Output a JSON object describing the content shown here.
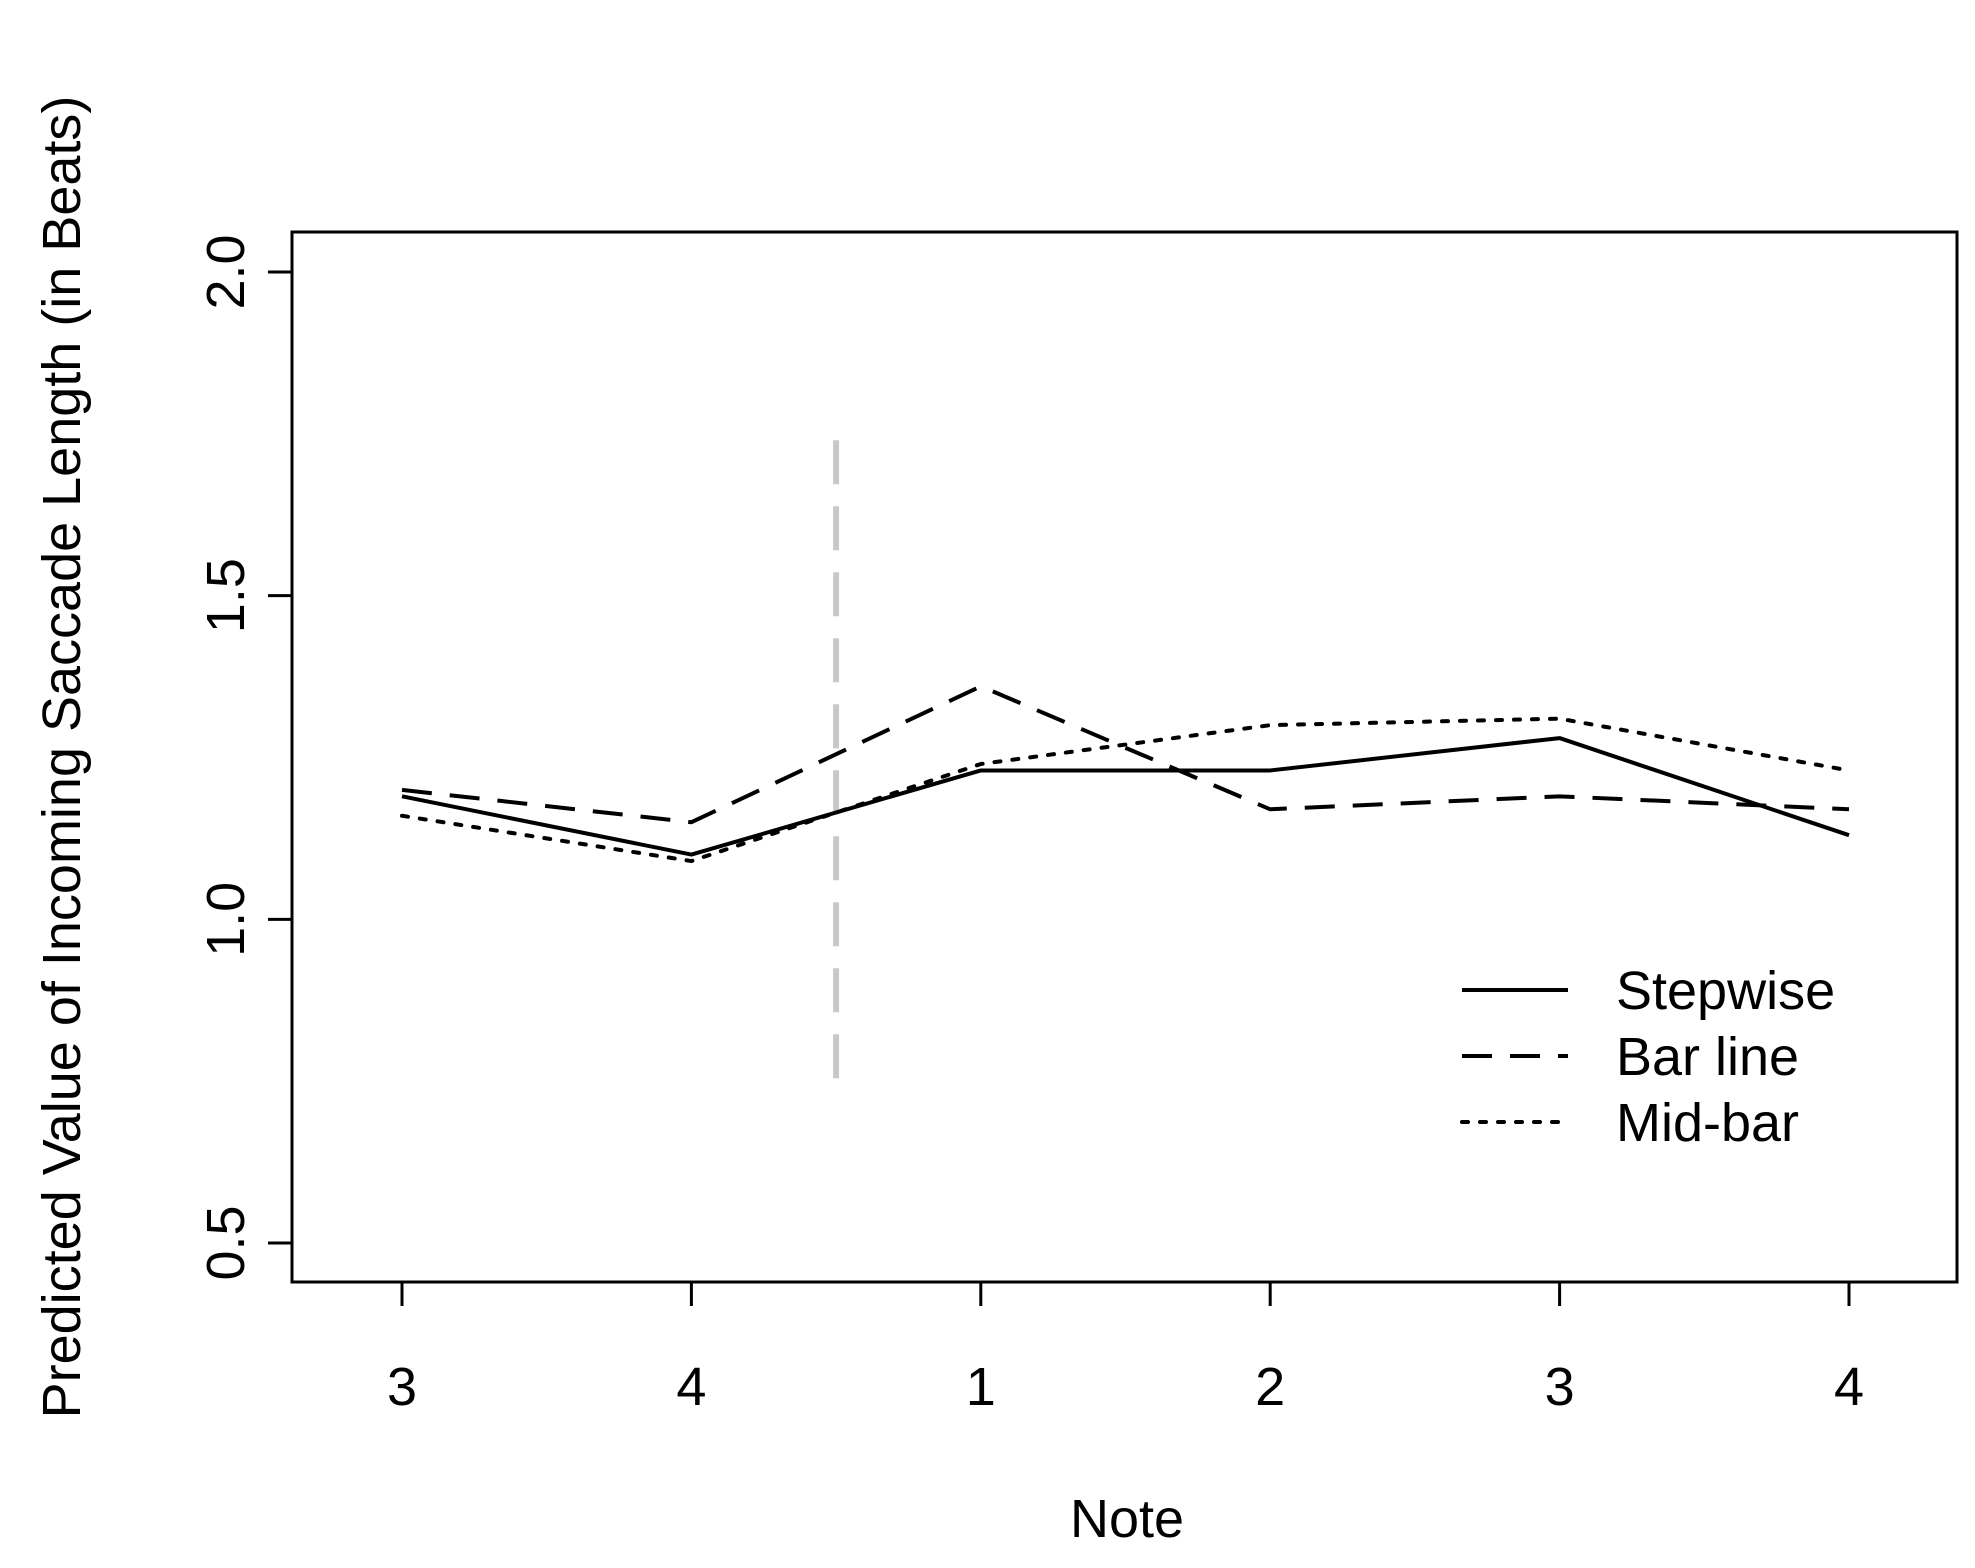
{
  "chart_data": {
    "type": "line",
    "title": "",
    "xlabel": "Note",
    "ylabel": "Predicted Value of Incoming Saccade Length (in Beats)",
    "categories": [
      "3",
      "4",
      "1",
      "2",
      "3",
      "4"
    ],
    "yticks": [
      "0.5",
      "1.0",
      "1.5",
      "2.0"
    ],
    "ylim": [
      0.5,
      2.0
    ],
    "grid": false,
    "legend_position": "bottom-right",
    "series": [
      {
        "name": "Stepwise",
        "style": "solid",
        "values": [
          1.19,
          1.1,
          1.23,
          1.23,
          1.28,
          1.13
        ]
      },
      {
        "name": "Bar line",
        "style": "dashed",
        "values": [
          1.2,
          1.15,
          1.36,
          1.17,
          1.19,
          1.17
        ]
      },
      {
        "name": "Mid-bar",
        "style": "dotted",
        "values": [
          1.16,
          1.09,
          1.24,
          1.3,
          1.31,
          1.23
        ]
      }
    ],
    "annotations": [
      {
        "type": "vertical-dashed-line",
        "between": [
          "4",
          "1"
        ],
        "y_range": [
          0.75,
          1.74
        ],
        "color": "#c8c8c8"
      }
    ]
  }
}
